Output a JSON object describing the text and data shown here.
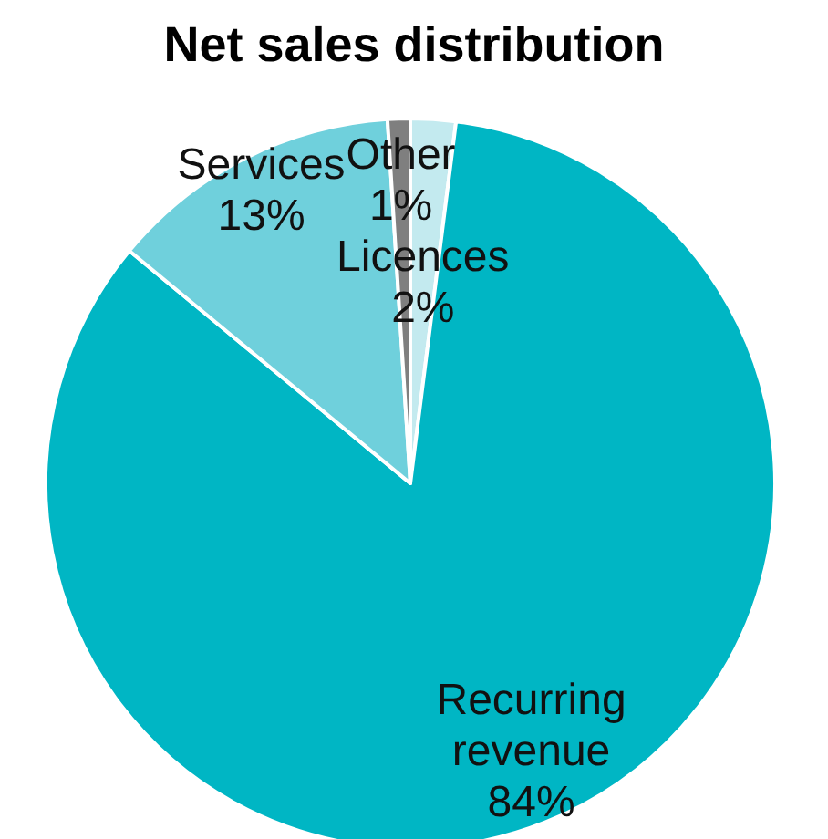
{
  "chart_data": {
    "type": "pie",
    "title": "Net sales distribution",
    "categories": [
      "Licences",
      "Recurring revenue",
      "Services",
      "Other"
    ],
    "values": [
      2,
      84,
      13,
      1
    ],
    "colors": [
      "#c3eaef",
      "#00b6c4",
      "#6fd0dc",
      "#7f7f7f"
    ],
    "value_labels": [
      "2%",
      "84%",
      "13%",
      "1%"
    ]
  }
}
